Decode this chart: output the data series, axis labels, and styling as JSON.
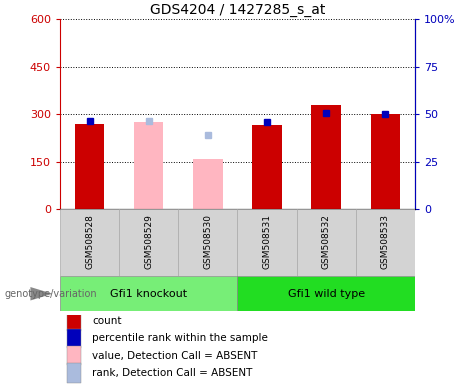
{
  "title": "GDS4204 / 1427285_s_at",
  "samples": [
    "GSM508528",
    "GSM508529",
    "GSM508530",
    "GSM508531",
    "GSM508532",
    "GSM508533"
  ],
  "groups": [
    {
      "name": "Gfi1 knockout",
      "indices": [
        0,
        1,
        2
      ],
      "color": "#77ee77"
    },
    {
      "name": "Gfi1 wild type",
      "indices": [
        3,
        4,
        5
      ],
      "color": "#22dd22"
    }
  ],
  "red_values": [
    270,
    null,
    null,
    265,
    330,
    300
  ],
  "blue_values": [
    280,
    null,
    null,
    275,
    305,
    300
  ],
  "pink_values": [
    null,
    275,
    160,
    null,
    null,
    null
  ],
  "lightblue_values": [
    null,
    280,
    235,
    null,
    null,
    null
  ],
  "red_color": "#cc0000",
  "blue_color": "#0000bb",
  "pink_color": "#ffb6c1",
  "lightblue_color": "#aabbdd",
  "ylim_left": [
    0,
    600
  ],
  "ylim_right": [
    0,
    100
  ],
  "yticks_left": [
    0,
    150,
    300,
    450,
    600
  ],
  "yticks_right": [
    0,
    25,
    50,
    75,
    100
  ],
  "ytick_labels_right": [
    "0",
    "25",
    "50",
    "75",
    "100%"
  ],
  "left_axis_color": "#cc0000",
  "right_axis_color": "#0000bb",
  "genotype_label": "genotype/variation",
  "legend_items": [
    {
      "label": "count",
      "color": "#cc0000"
    },
    {
      "label": "percentile rank within the sample",
      "color": "#0000bb"
    },
    {
      "label": "value, Detection Call = ABSENT",
      "color": "#ffb6c1"
    },
    {
      "label": "rank, Detection Call = ABSENT",
      "color": "#aabbdd"
    }
  ],
  "bar_width": 0.5
}
